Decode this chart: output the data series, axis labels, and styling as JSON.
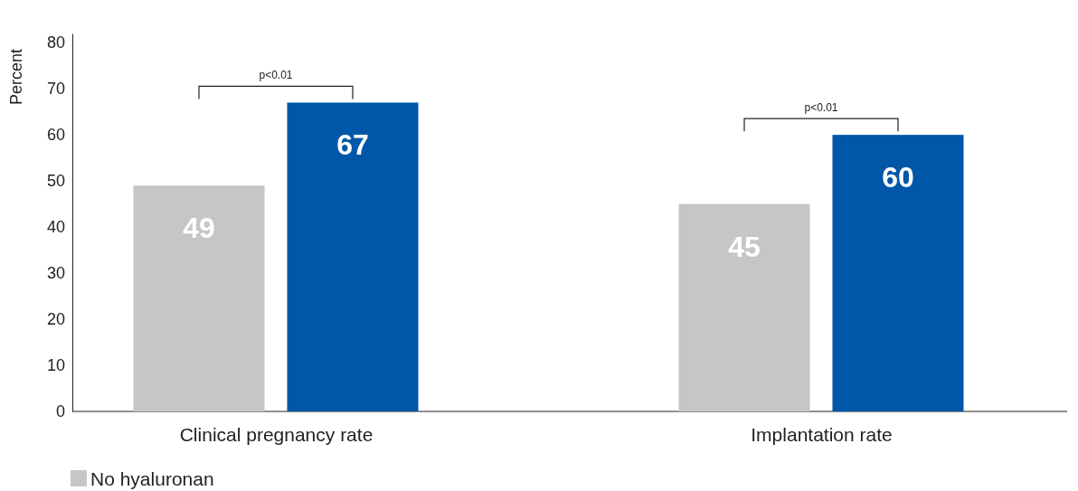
{
  "chart_data": {
    "type": "bar",
    "ylabel": "Percent",
    "categories": [
      "Clinical pregnancy rate",
      "Implantation rate"
    ],
    "series": [
      {
        "name": "No hyaluronan",
        "color": "#c4c6c8",
        "values": [
          49,
          45
        ]
      },
      {
        "color": "#0057a8",
        "values": [
          67,
          60
        ]
      }
    ],
    "ylim": [
      0,
      82
    ],
    "yticks": [
      0,
      10,
      20,
      30,
      40,
      50,
      60,
      70,
      80
    ],
    "data_labels": true,
    "legend": "bottom left",
    "grid": false,
    "annotations": [
      "p<0.01",
      "p<0.01"
    ]
  }
}
